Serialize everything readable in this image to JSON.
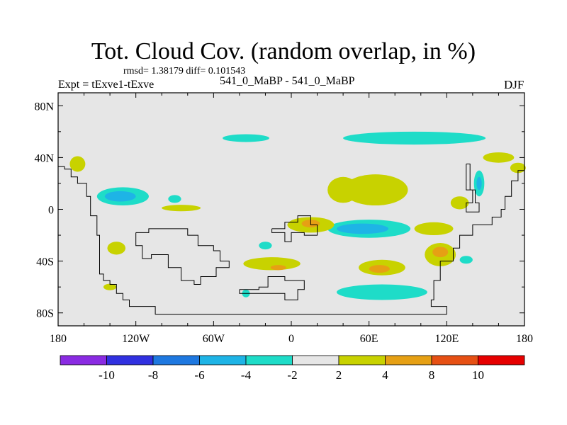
{
  "chart_data": {
    "type": "heatmap",
    "title": "Tot. Cloud Cov. (random overlap, in %)",
    "stats_label": "rmsd= 1.38179  diff= 0.101543",
    "rmsd": 1.38179,
    "diff": 0.101543,
    "experiment_label": "Expt = tExve1-tExve",
    "case_label": "541_0_MaBP - 541_0_MaBP",
    "season": "DJF",
    "x_ticks": [
      {
        "lon": -180,
        "label": "180"
      },
      {
        "lon": -120,
        "label": "120W"
      },
      {
        "lon": -60,
        "label": "60W"
      },
      {
        "lon": 0,
        "label": "0"
      },
      {
        "lon": 60,
        "label": "60E"
      },
      {
        "lon": 120,
        "label": "120E"
      },
      {
        "lon": 180,
        "label": "180"
      }
    ],
    "y_ticks": [
      {
        "lat": 80,
        "label": "80N"
      },
      {
        "lat": 40,
        "label": "40N"
      },
      {
        "lat": 0,
        "label": "0"
      },
      {
        "lat": -40,
        "label": "40S"
      },
      {
        "lat": -80,
        "label": "80S"
      }
    ],
    "xlim": [
      -180,
      180
    ],
    "ylim": [
      -90,
      90
    ],
    "colorbar": {
      "colors": [
        "#8a2be2",
        "#3030e0",
        "#1e78e0",
        "#1eb4e6",
        "#1edcc8",
        "#e6e6e6",
        "#c8d200",
        "#e6a014",
        "#e65014",
        "#e60000"
      ],
      "labels": [
        "-10",
        "-8",
        "-6",
        "-4",
        "-2",
        "2",
        "4",
        "8",
        "10"
      ]
    },
    "anomalies": [
      {
        "lon": -35,
        "lat": 55,
        "rx": 18,
        "ry": 3,
        "level": "-2"
      },
      {
        "lon": 95,
        "lat": 55,
        "rx": 55,
        "ry": 5,
        "level": "-2"
      },
      {
        "lon": -165,
        "lat": 35,
        "rx": 6,
        "ry": 6,
        "level": "2"
      },
      {
        "lon": -130,
        "lat": 10,
        "rx": 20,
        "ry": 7,
        "level": "-2"
      },
      {
        "lon": -132,
        "lat": 10,
        "rx": 12,
        "ry": 4,
        "level": "-4"
      },
      {
        "lon": -90,
        "lat": 8,
        "rx": 5,
        "ry": 3,
        "level": "-2"
      },
      {
        "lon": -85,
        "lat": 1,
        "rx": 15,
        "ry": 2.5,
        "level": "2"
      },
      {
        "lon": -135,
        "lat": -30,
        "rx": 7,
        "ry": 5,
        "level": "2"
      },
      {
        "lon": -140,
        "lat": -60,
        "rx": 5,
        "ry": 2.5,
        "level": "2"
      },
      {
        "lon": 40,
        "lat": 15,
        "rx": 12,
        "ry": 10,
        "level": "2"
      },
      {
        "lon": 65,
        "lat": 15,
        "rx": 25,
        "ry": 12,
        "level": "2"
      },
      {
        "lon": 60,
        "lat": -15,
        "rx": 32,
        "ry": 7,
        "level": "-2"
      },
      {
        "lon": 55,
        "lat": -15,
        "rx": 20,
        "ry": 4,
        "level": "-4"
      },
      {
        "lon": 15,
        "lat": -12,
        "rx": 18,
        "ry": 6,
        "level": "2"
      },
      {
        "lon": 15,
        "lat": -11,
        "rx": 7,
        "ry": 3,
        "level": "4"
      },
      {
        "lon": 110,
        "lat": -15,
        "rx": 15,
        "ry": 5,
        "level": "2"
      },
      {
        "lon": 115,
        "lat": -35,
        "rx": 12,
        "ry": 9,
        "level": "2"
      },
      {
        "lon": 115,
        "lat": -33,
        "rx": 6,
        "ry": 4,
        "level": "4"
      },
      {
        "lon": 130,
        "lat": 5,
        "rx": 7,
        "ry": 5,
        "level": "2"
      },
      {
        "lon": 145,
        "lat": 20,
        "rx": 4,
        "ry": 10,
        "level": "-2"
      },
      {
        "lon": 145,
        "lat": 20,
        "rx": 2,
        "ry": 5,
        "level": "-4"
      },
      {
        "lon": 160,
        "lat": 40,
        "rx": 12,
        "ry": 4,
        "level": "2"
      },
      {
        "lon": 175,
        "lat": 32,
        "rx": 6,
        "ry": 4,
        "level": "2"
      },
      {
        "lon": -15,
        "lat": -42,
        "rx": 22,
        "ry": 5,
        "level": "2"
      },
      {
        "lon": -10,
        "lat": -45,
        "rx": 6,
        "ry": 2,
        "level": "4"
      },
      {
        "lon": 70,
        "lat": -45,
        "rx": 18,
        "ry": 6,
        "level": "2"
      },
      {
        "lon": 68,
        "lat": -46,
        "rx": 8,
        "ry": 3,
        "level": "4"
      },
      {
        "lon": 70,
        "lat": -64,
        "rx": 35,
        "ry": 6,
        "level": "-2"
      },
      {
        "lon": -35,
        "lat": -65,
        "rx": 3,
        "ry": 3,
        "level": "-2"
      },
      {
        "lon": -20,
        "lat": -28,
        "rx": 5,
        "ry": 3,
        "level": "-2"
      },
      {
        "lon": 135,
        "lat": -39,
        "rx": 5,
        "ry": 3,
        "level": "-2"
      }
    ],
    "coastlines": [
      [
        [
          -180,
          33
        ],
        [
          -175,
          33
        ],
        [
          -175,
          31
        ],
        [
          -170,
          31
        ],
        [
          -170,
          25
        ],
        [
          -165,
          25
        ],
        [
          -165,
          20
        ],
        [
          -158,
          20
        ],
        [
          -158,
          10
        ],
        [
          -155,
          10
        ],
        [
          -155,
          -5
        ],
        [
          -150,
          -5
        ],
        [
          -150,
          -20
        ],
        [
          -148,
          -20
        ],
        [
          -148,
          -50
        ],
        [
          -145,
          -50
        ],
        [
          -145,
          -55
        ],
        [
          -140,
          -55
        ],
        [
          -140,
          -58
        ],
        [
          -135,
          -58
        ],
        [
          -135,
          -65
        ],
        [
          -130,
          -65
        ],
        [
          -130,
          -70
        ],
        [
          -125,
          -70
        ],
        [
          -125,
          -75
        ],
        [
          -105,
          -75
        ],
        [
          -105,
          -81
        ],
        [
          120,
          -81
        ],
        [
          120,
          -75
        ],
        [
          108,
          -75
        ],
        [
          108,
          -70
        ],
        [
          110,
          -70
        ],
        [
          110,
          -55
        ],
        [
          115,
          -55
        ],
        [
          115,
          -40
        ],
        [
          125,
          -40
        ],
        [
          125,
          -30
        ],
        [
          130,
          -30
        ],
        [
          130,
          -20
        ],
        [
          140,
          -20
        ],
        [
          140,
          -12
        ],
        [
          155,
          -12
        ],
        [
          155,
          -6
        ],
        [
          162,
          -6
        ],
        [
          162,
          0
        ],
        [
          165,
          0
        ],
        [
          165,
          10
        ],
        [
          170,
          10
        ],
        [
          170,
          22
        ],
        [
          175,
          22
        ],
        [
          175,
          30
        ],
        [
          180,
          30
        ]
      ],
      [
        [
          -120,
          -18
        ],
        [
          -110,
          -18
        ],
        [
          -110,
          -15
        ],
        [
          -80,
          -15
        ],
        [
          -80,
          -20
        ],
        [
          -72,
          -20
        ],
        [
          -72,
          -28
        ],
        [
          -60,
          -28
        ],
        [
          -60,
          -32
        ],
        [
          -55,
          -32
        ],
        [
          -55,
          -40
        ],
        [
          -48,
          -40
        ],
        [
          -48,
          -45
        ],
        [
          -58,
          -45
        ],
        [
          -58,
          -52
        ],
        [
          -70,
          -52
        ],
        [
          -70,
          -58
        ],
        [
          -75,
          -58
        ],
        [
          -75,
          -55
        ],
        [
          -85,
          -55
        ],
        [
          -85,
          -45
        ],
        [
          -95,
          -45
        ],
        [
          -95,
          -35
        ],
        [
          -108,
          -35
        ],
        [
          -108,
          -38
        ],
        [
          -115,
          -38
        ],
        [
          -115,
          -28
        ],
        [
          -120,
          -28
        ],
        [
          -120,
          -18
        ]
      ],
      [
        [
          -15,
          -15
        ],
        [
          -5,
          -15
        ],
        [
          -5,
          -10
        ],
        [
          5,
          -10
        ],
        [
          5,
          -5
        ],
        [
          15,
          -5
        ],
        [
          15,
          -12
        ],
        [
          20,
          -12
        ],
        [
          20,
          -20
        ],
        [
          10,
          -20
        ],
        [
          10,
          -18
        ],
        [
          0,
          -18
        ],
        [
          0,
          -25
        ],
        [
          -5,
          -25
        ],
        [
          -5,
          -18
        ],
        [
          -15,
          -18
        ],
        [
          -15,
          -15
        ]
      ],
      [
        [
          -40,
          -62
        ],
        [
          -25,
          -62
        ],
        [
          -25,
          -60
        ],
        [
          -18,
          -60
        ],
        [
          -18,
          -52
        ],
        [
          -5,
          -52
        ],
        [
          -5,
          -55
        ],
        [
          10,
          -55
        ],
        [
          10,
          -62
        ],
        [
          5,
          -62
        ],
        [
          5,
          -70
        ],
        [
          -5,
          -70
        ],
        [
          -5,
          -65
        ],
        [
          -40,
          -65
        ],
        [
          -40,
          -62
        ]
      ],
      [
        [
          135,
          35
        ],
        [
          138,
          35
        ],
        [
          138,
          15
        ],
        [
          142,
          15
        ],
        [
          142,
          5
        ],
        [
          145,
          5
        ],
        [
          145,
          -2
        ],
        [
          135,
          -2
        ],
        [
          135,
          5
        ],
        [
          140,
          5
        ],
        [
          140,
          15
        ],
        [
          135,
          15
        ],
        [
          135,
          35
        ]
      ]
    ]
  }
}
